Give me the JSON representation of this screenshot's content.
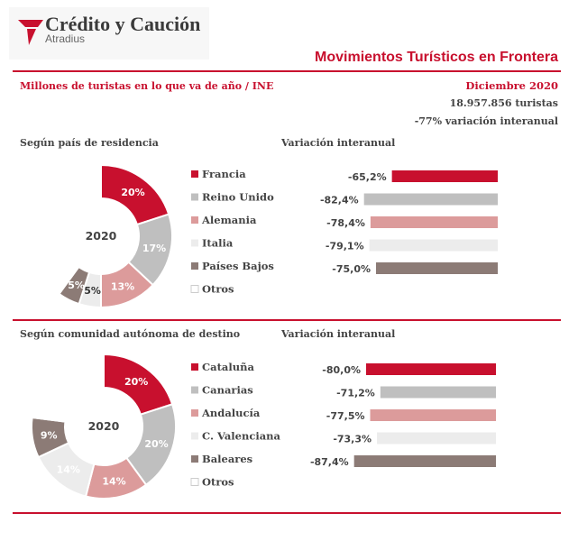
{
  "header": {
    "brand": "Crédito y Caución",
    "brand_sub": "Atradius",
    "title": "Movimientos Turísticos en Frontera",
    "subtitle": "Millones de turistas en lo que va de año / INE",
    "date": "Diciembre 2020",
    "total": "18.957.856 turistas",
    "yoy": "-77% variación  interanual"
  },
  "colors": {
    "accent": "#c8102e",
    "brand_icon": "#c8102e"
  },
  "chart_data": [
    {
      "type": "pie",
      "title": "Según país de residencia",
      "center_label": "2020",
      "slices": [
        {
          "label": "Francia",
          "value": 20,
          "text": "20%",
          "color": "#c8102e",
          "text_color": "#ffffff"
        },
        {
          "label": "Reino Unido",
          "value": 17,
          "text": "17%",
          "color": "#bfbfbf",
          "text_color": "#ffffff"
        },
        {
          "label": "Alemania",
          "value": 13,
          "text": "13%",
          "color": "#dc9b9b",
          "text_color": "#ffffff"
        },
        {
          "label": "Italia",
          "value": 5,
          "text": "5%",
          "color": "#ececec",
          "text_color": "#333333"
        },
        {
          "label": "Países Bajos",
          "value": 5,
          "text": "5%",
          "color": "#8c7b76",
          "text_color": "#ffffff"
        },
        {
          "label": "Otros",
          "value": 40,
          "text": "",
          "color": "#ffffff",
          "text_color": "#333333"
        }
      ]
    },
    {
      "type": "bar",
      "title": "Variación interanual",
      "orientation": "horizontal",
      "categories": [
        "Francia",
        "Reino Unido",
        "Alemania",
        "Italia",
        "Países Bajos"
      ],
      "values": [
        -65.2,
        -82.4,
        -78.4,
        -79.1,
        -75.0
      ],
      "value_labels": [
        "-65,2%",
        "-82,4%",
        "-78,4%",
        "-79,1%",
        "-75,0%"
      ],
      "colors": [
        "#c8102e",
        "#bfbfbf",
        "#dc9b9b",
        "#ececec",
        "#8c7b76"
      ]
    },
    {
      "type": "pie",
      "title": "Según comunidad autónoma de destino",
      "center_label": "2020",
      "slices": [
        {
          "label": "Cataluña",
          "value": 20,
          "text": "20%",
          "color": "#c8102e",
          "text_color": "#ffffff"
        },
        {
          "label": "Canarias",
          "value": 20,
          "text": "20%",
          "color": "#bfbfbf",
          "text_color": "#ffffff"
        },
        {
          "label": "Andalucía",
          "value": 14,
          "text": "14%",
          "color": "#dc9b9b",
          "text_color": "#ffffff"
        },
        {
          "label": "C. Valenciana",
          "value": 14,
          "text": "14%",
          "color": "#ececec",
          "text_color": "#ffffff"
        },
        {
          "label": "Baleares",
          "value": 9,
          "text": "9%",
          "color": "#8c7b76",
          "text_color": "#ffffff"
        },
        {
          "label": "Otros",
          "value": 23,
          "text": "",
          "color": "#ffffff",
          "text_color": "#333333"
        }
      ]
    },
    {
      "type": "bar",
      "title": "Variación interanual",
      "orientation": "horizontal",
      "categories": [
        "Cataluña",
        "Canarias",
        "Andalucía",
        "C. Valenciana",
        "Baleares"
      ],
      "values": [
        -80.0,
        -71.2,
        -77.5,
        -73.3,
        -87.4
      ],
      "value_labels": [
        "-80,0%",
        "-71,2%",
        "-77,5%",
        "-73,3%",
        "-87,4%"
      ],
      "colors": [
        "#c8102e",
        "#bfbfbf",
        "#dc9b9b",
        "#ececec",
        "#8c7b76"
      ]
    }
  ]
}
